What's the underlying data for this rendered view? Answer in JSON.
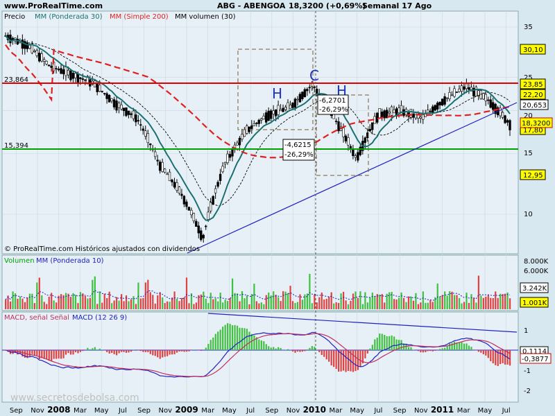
{
  "header": {
    "site": "www.ProRealTime.com",
    "ticker": "ABG - ABENGOA",
    "quote": "18,3200 (+0,69%)",
    "period": "Semanal 17 Ago"
  },
  "price_panel": {
    "legend": {
      "price": "Precio",
      "wma": "MM (Ponderada 30)",
      "sma": "MM (Simple 200)",
      "vol": "MM volumen (30)"
    },
    "copyright": "© ProRealTime.com Históricos ajustados con dividendos",
    "level_high_label": "23,864",
    "level_low_label": "15,394",
    "pattern_H1": "H",
    "pattern_C": "C",
    "pattern_H2": "H",
    "box_left_line1": "-4,6215",
    "box_left_line2": "-26,29%",
    "box_right_line1": "-6,2701",
    "box_right_line2": "-26,29%",
    "tag_3010": "30,10",
    "tag_2385": "23,85",
    "tag_2220": "22,20",
    "tag_20653": "20,653",
    "tag_18320": "18,3200",
    "tag_1780": "17,80",
    "tag_1295": "12,95",
    "axis_35": "35",
    "axis_25": "25",
    "axis_20": "20",
    "axis_15": "15",
    "axis_10": "10"
  },
  "volume_panel": {
    "legend_vol": "Volumen",
    "legend_mm": "MM (Ponderada 10)",
    "axis_8": "8.000K",
    "axis_6": "6.000K",
    "tag_3242": "3.242K",
    "tag_1001": "1.001K"
  },
  "macd_panel": {
    "legend_macd": "MACD, señal Señal",
    "legend_params": "MACD (12 26 9)",
    "axis_1": "1",
    "axis_m1": "-1",
    "axis_m2": "-2",
    "tag_01114": "0,1114",
    "tag_m03877": "-0,3877",
    "watermark": "www.secretosdebolsa.com"
  },
  "x_axis": {
    "labels": [
      "Sep",
      "Nov",
      "2008",
      "Mar",
      "May",
      "Jul",
      "Sep",
      "Nov",
      "2009",
      "Mar",
      "May",
      "Jul",
      "Sep",
      "Nov",
      "2010",
      "Mar",
      "May",
      "Jul",
      "Sep",
      "Nov",
      "2011",
      "Mar",
      "May",
      "Jul"
    ]
  },
  "colors": {
    "bg": "#d8e8f0",
    "panel": "#e6f0f6",
    "wma": "#1a7070",
    "sma": "#e02020",
    "support": "#00a000",
    "resistance": "#e00000",
    "trend": "#2020c0",
    "vol_up": "#40c040",
    "vol_down": "#e04040",
    "tag_yellow": "#ffff00"
  },
  "chart_data": {
    "type": "line",
    "title": "ABG - ABENGOA",
    "ylabel": "",
    "xlabel": "",
    "ylim": [
      7.5,
      37
    ],
    "x": [
      "Sep",
      "Nov",
      "2008",
      "Mar",
      "May",
      "Jul",
      "Sep",
      "Nov",
      "2009",
      "Mar",
      "May",
      "Jul",
      "Sep",
      "Nov",
      "2010",
      "Mar",
      "May",
      "Jul",
      "Sep",
      "Nov",
      "2011",
      "Mar",
      "May",
      "Jul"
    ],
    "series": [
      {
        "name": "Precio",
        "values": [
          33,
          31,
          27,
          25.5,
          24,
          21,
          19,
          14,
          11.5,
          8.5,
          14,
          17.5,
          19.5,
          20.5,
          23.8,
          19,
          14.5,
          19.5,
          20,
          19,
          21.5,
          23.5,
          21.5,
          18.3
        ]
      }
    ],
    "reference_lines": {
      "resistance": 23.864,
      "support": 15.394
    }
  }
}
